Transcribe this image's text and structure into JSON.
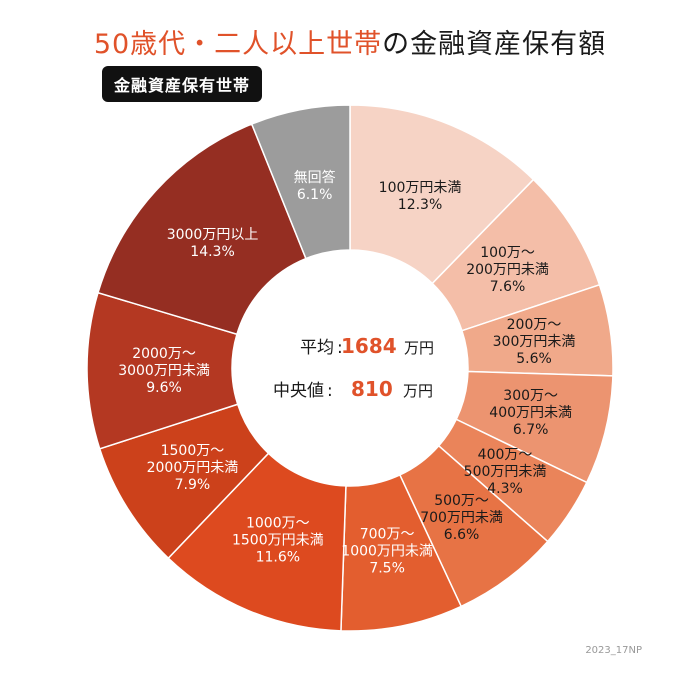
{
  "title": {
    "accent": "50歳代・二人以上世帯",
    "rest": "の金融資産保有額"
  },
  "badge": "金融資産保有世帯",
  "summary": {
    "mean_label": "平均",
    "mean_value": "1684",
    "median_label": "中央値",
    "median_value": "810",
    "unit": "万円",
    "value_color": "#e0522a"
  },
  "footer": "2023_17NP",
  "chart_data": {
    "type": "pie",
    "variant": "donut",
    "unit": "%",
    "slices": [
      {
        "label": [
          "100万円未満"
        ],
        "value": 12.3,
        "display": "12.3%",
        "color": "#f6d3c5",
        "text_color": "#1a1a1a"
      },
      {
        "label": [
          "100万～",
          "200万円未満"
        ],
        "value": 7.6,
        "display": "7.6%",
        "color": "#f4bea8",
        "text_color": "#1a1a1a"
      },
      {
        "label": [
          "200万～",
          "300万円未満"
        ],
        "value": 5.6,
        "display": "5.6%",
        "color": "#f0a98a",
        "text_color": "#1a1a1a"
      },
      {
        "label": [
          "300万～",
          "400万円未満"
        ],
        "value": 6.7,
        "display": "6.7%",
        "color": "#ec9470",
        "text_color": "#1a1a1a"
      },
      {
        "label": [
          "400万～",
          "500万円未満"
        ],
        "value": 4.3,
        "display": "4.3%",
        "color": "#ea845a",
        "text_color": "#1a1a1a"
      },
      {
        "label": [
          "500万～",
          "700万円未満"
        ],
        "value": 6.6,
        "display": "6.6%",
        "color": "#e77345",
        "text_color": "#1a1a1a"
      },
      {
        "label": [
          "700万～",
          "1000万円未満"
        ],
        "value": 7.5,
        "display": "7.5%",
        "color": "#e35e2f",
        "text_color": "#ffffff"
      },
      {
        "label": [
          "1000万～",
          "1500万円未満"
        ],
        "value": 11.6,
        "display": "11.6%",
        "color": "#dd4a1f",
        "text_color": "#ffffff"
      },
      {
        "label": [
          "1500万～",
          "2000万円未満"
        ],
        "value": 7.9,
        "display": "7.9%",
        "color": "#cc411b",
        "text_color": "#ffffff"
      },
      {
        "label": [
          "2000万～",
          "3000万円未満"
        ],
        "value": 9.6,
        "display": "9.6%",
        "color": "#b43822",
        "text_color": "#ffffff"
      },
      {
        "label": [
          "3000万円以上"
        ],
        "value": 14.3,
        "display": "14.3%",
        "color": "#952e22",
        "text_color": "#ffffff"
      },
      {
        "label": [
          "無回答"
        ],
        "value": 6.1,
        "display": "6.1%",
        "color": "#9c9c9c",
        "text_color": "#ffffff"
      }
    ]
  }
}
